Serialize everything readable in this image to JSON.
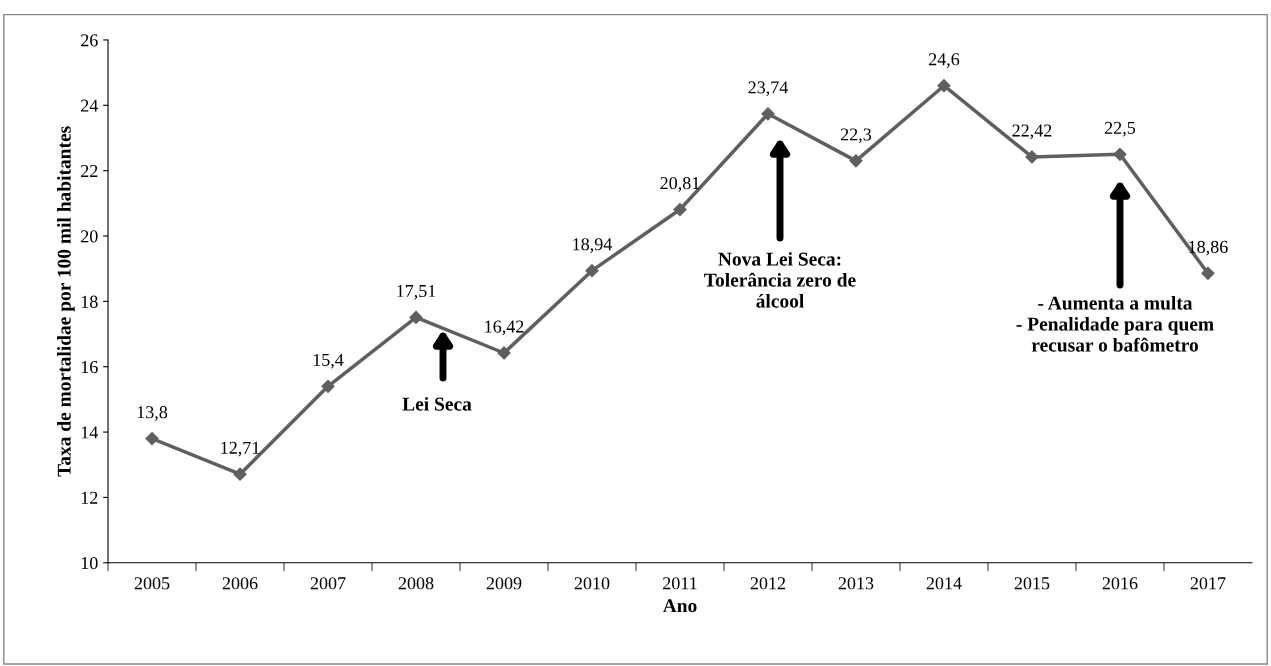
{
  "chart_data": {
    "type": "line",
    "xlabel": "Ano",
    "ylabel": "Taxa de mortalidae por 100 mil habitantes",
    "categories": [
      "2005",
      "2006",
      "2007",
      "2008",
      "2009",
      "2010",
      "2011",
      "2012",
      "2013",
      "2014",
      "2015",
      "2016",
      "2017"
    ],
    "series": [
      {
        "color": "#5f5f5f",
        "values": [
          13.8,
          12.71,
          15.4,
          17.51,
          16.42,
          18.94,
          20.81,
          23.74,
          22.3,
          24.6,
          22.42,
          22.5,
          18.86
        ],
        "value_labels": [
          "13,8",
          "12,71",
          "15,4",
          "17,51",
          "16,42",
          "18,94",
          "20,81",
          "23,74",
          "22,3",
          "24,6",
          "22,42",
          "22,5",
          "18,86"
        ]
      }
    ],
    "ylim": [
      10,
      26
    ],
    "yticks": [
      10,
      12,
      14,
      16,
      18,
      20,
      22,
      24,
      26
    ],
    "marker": "diamond",
    "line_style": "solid",
    "grid": false,
    "legend": false,
    "annotations": [
      "Lei Seca",
      "Nova Lei Seca:\nTolerância zero de\nálcool",
      "- Aumenta a multa\n- Penalidade para quem\nrecusar o bafômetro"
    ]
  }
}
